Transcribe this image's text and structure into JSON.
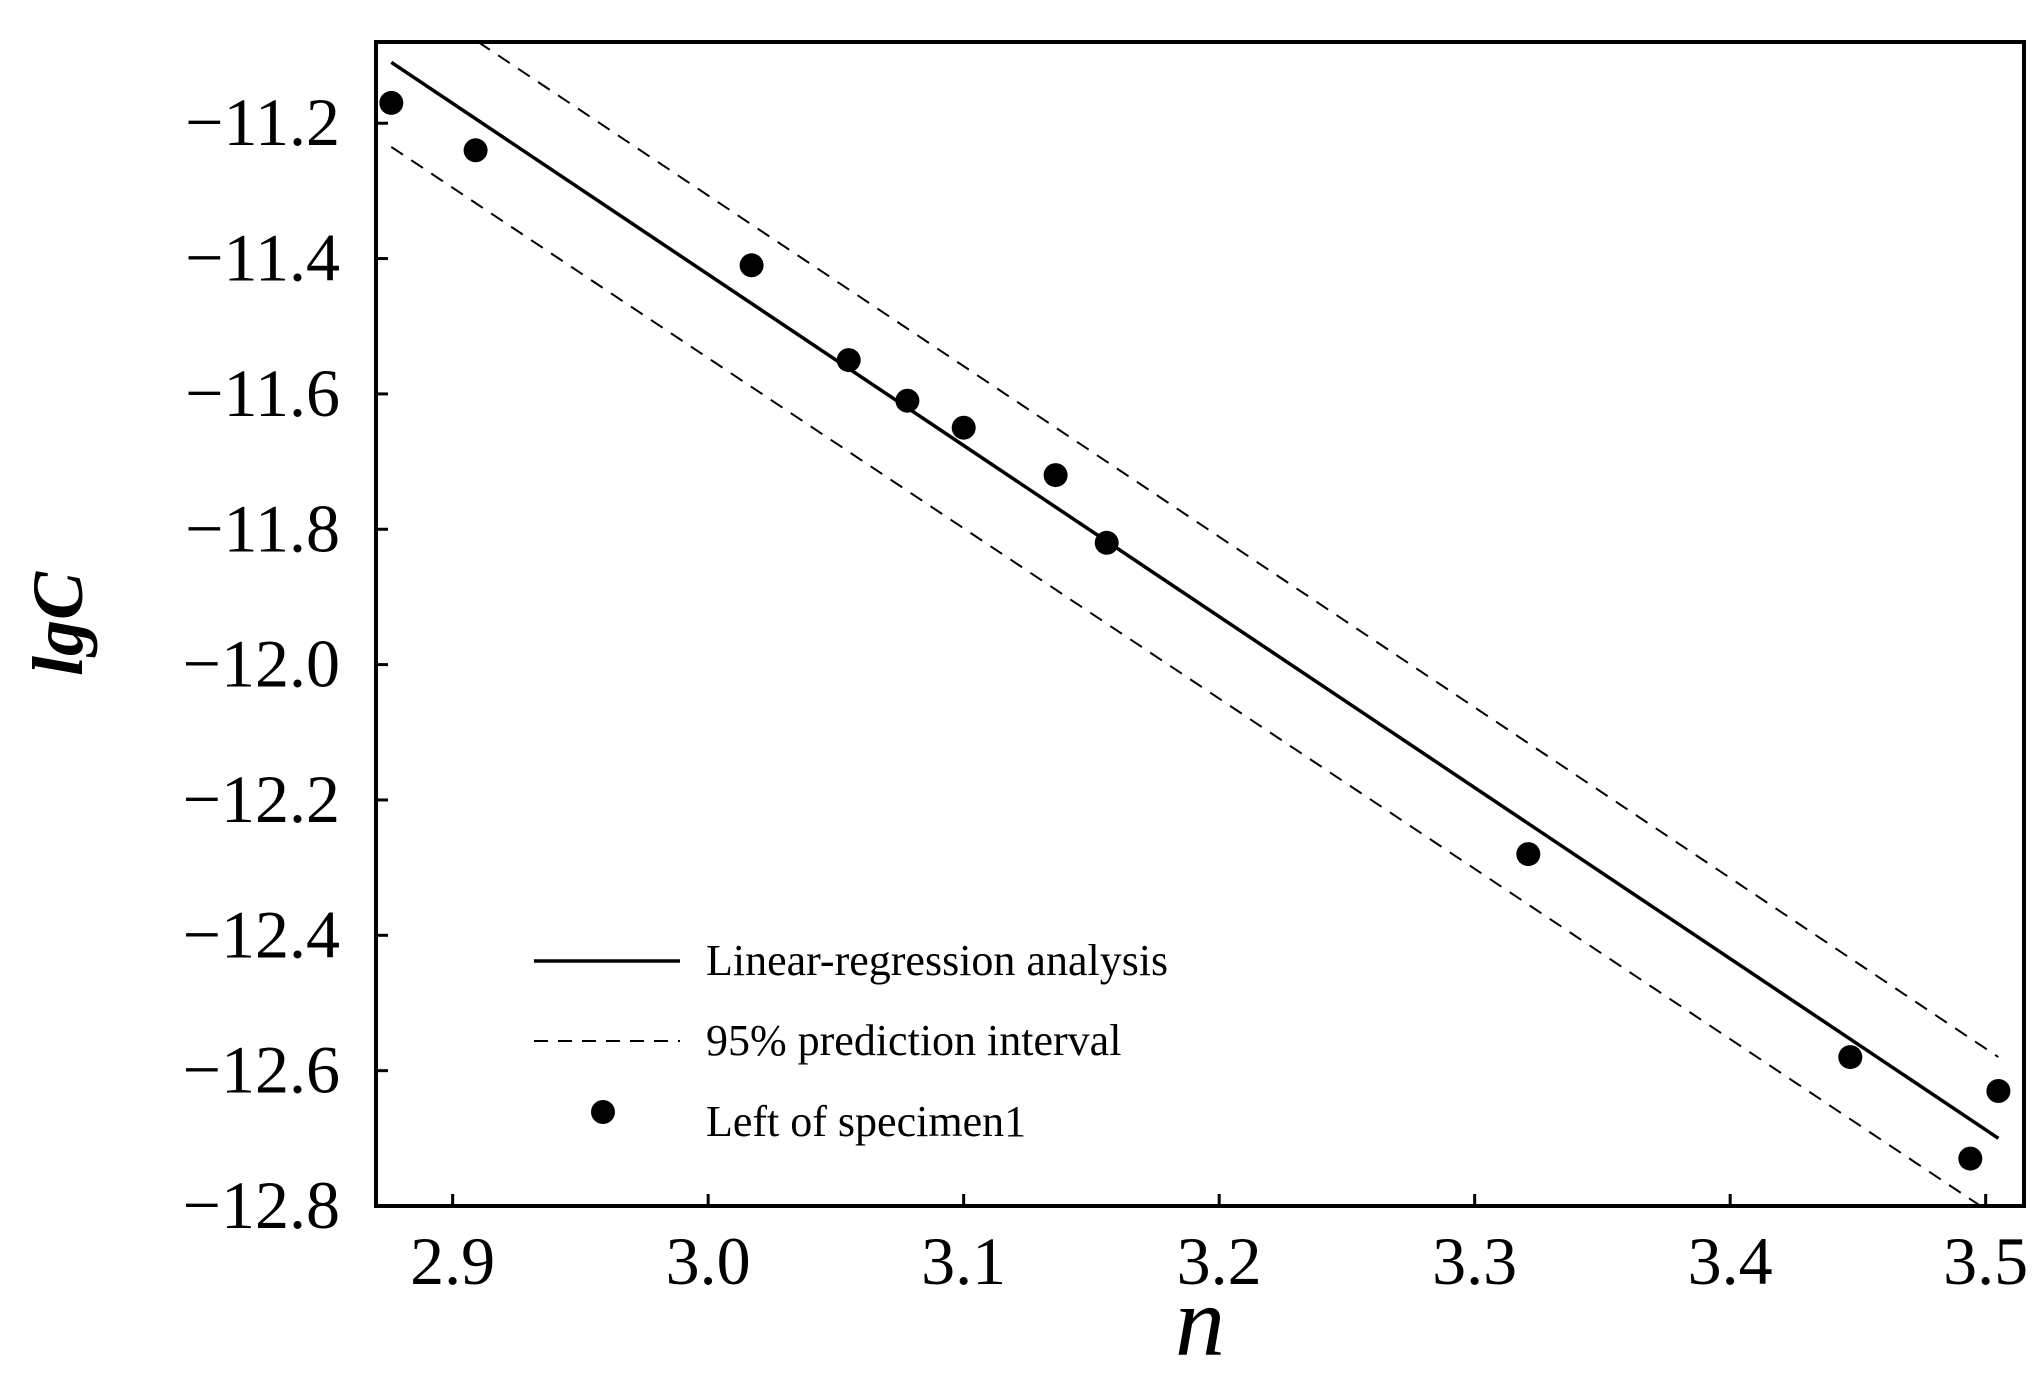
{
  "chart_data": {
    "type": "scatter",
    "xlabel": "n",
    "ylabel": "lgC",
    "xlim": [
      2.87,
      3.515
    ],
    "ylim": [
      -12.8,
      -11.08
    ],
    "xticks": [
      2.9,
      3.0,
      3.1,
      3.2,
      3.3,
      3.4,
      3.5
    ],
    "xtick_labels": [
      "2.9",
      "3.0",
      "3.1",
      "3.2",
      "3.3",
      "3.4",
      "3.5"
    ],
    "yticks": [
      -11.2,
      -11.4,
      -11.6,
      -11.8,
      -12.0,
      -12.2,
      -12.4,
      -12.6,
      -12.8
    ],
    "ytick_labels": [
      "−11.2",
      "−11.4",
      "−11.6",
      "−11.8",
      "−12.0",
      "−12.2",
      "−12.4",
      "−12.6",
      "−12.8"
    ],
    "grid": false,
    "legend_position": "bottom-left",
    "series": [
      {
        "name": "Linear-regression analysis",
        "kind": "line",
        "style": "solid",
        "x": [
          2.876,
          3.505
        ],
        "y": [
          -11.11,
          -12.7
        ]
      },
      {
        "name": "95% prediction interval",
        "kind": "line",
        "style": "dashed",
        "x": [
          2.91,
          3.505
        ],
        "y": [
          -11.08,
          -12.58
        ]
      },
      {
        "name": "",
        "kind": "line",
        "style": "dashed",
        "x": [
          2.876,
          3.498
        ],
        "y": [
          -11.235,
          -12.8
        ]
      },
      {
        "name": "Left of specimen1",
        "kind": "scatter",
        "x": [
          2.876,
          2.909,
          3.017,
          3.055,
          3.078,
          3.1,
          3.136,
          3.156,
          3.321,
          3.447,
          3.494,
          3.505
        ],
        "y": [
          -11.17,
          -11.24,
          -11.41,
          -11.55,
          -11.61,
          -11.65,
          -11.72,
          -11.82,
          -12.28,
          -12.58,
          -12.73,
          -12.63
        ]
      }
    ]
  }
}
